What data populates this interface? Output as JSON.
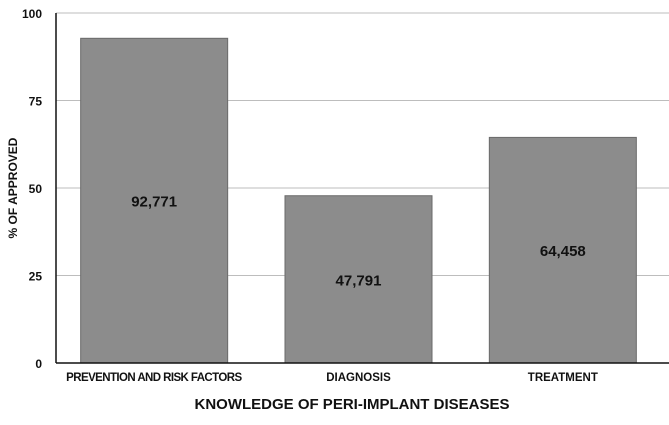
{
  "chart_data": {
    "type": "bar",
    "categories": [
      "PREVENTION AND RISK FACTORS",
      "DIAGNOSIS",
      "TREATMENT"
    ],
    "values": [
      92.771,
      47.791,
      64.458
    ],
    "data_labels": [
      "92,771",
      "47,791",
      "64,458"
    ],
    "title": "",
    "xlabel": "KNOWLEDGE OF PERI-IMPLANT DISEASES",
    "ylabel": "% OF APPROVED",
    "ylim": [
      0,
      100
    ],
    "yticks": [
      0,
      25,
      50,
      75,
      100
    ],
    "grid": true,
    "legend": "none",
    "colors": {
      "bar_fill": "#8c8c8c",
      "bar_stroke": "#6a6a6a",
      "grid": "#bdbdbd",
      "axis": "#111111"
    }
  }
}
